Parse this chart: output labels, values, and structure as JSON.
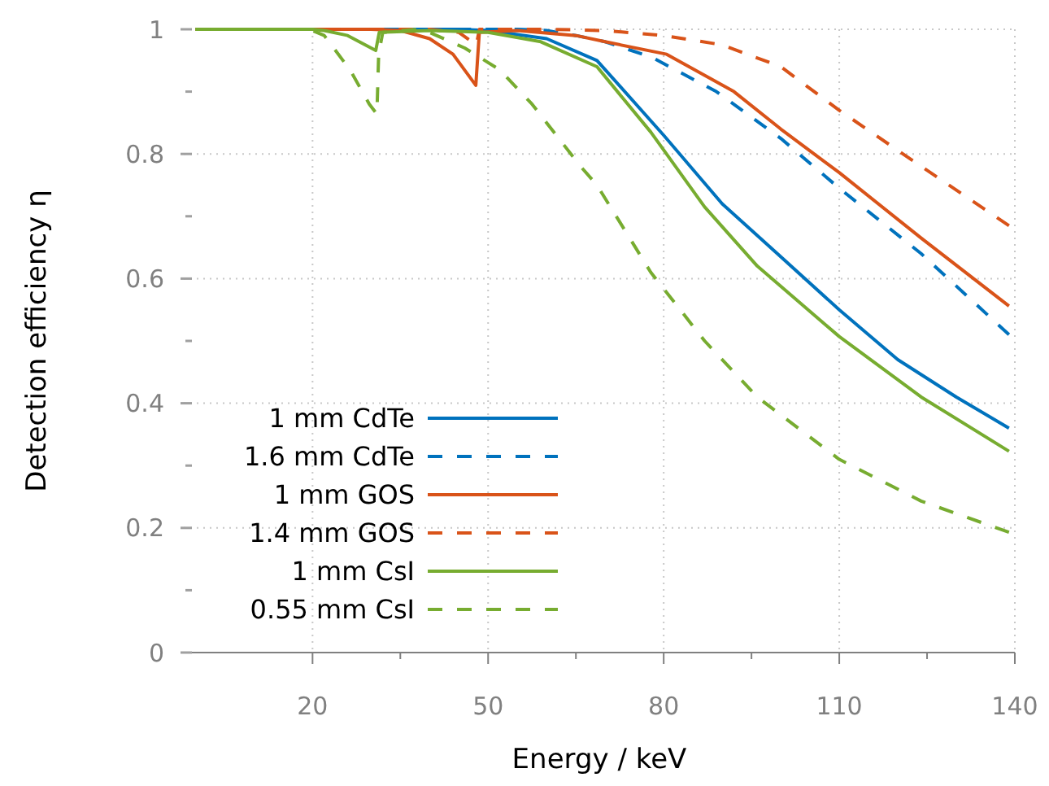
{
  "chart_data": {
    "type": "line",
    "xlabel": "Energy / keV",
    "ylabel": "Detection efficiency η",
    "xlim": [
      -2,
      140
    ],
    "xticks": [
      20,
      {
        "value": 35,
        "label": null
      },
      50,
      {
        "value": 65,
        "label": null
      },
      80,
      {
        "value": 95,
        "label": null
      },
      110,
      {
        "value": 125,
        "label": null
      },
      140
    ],
    "ylim": [
      0,
      1
    ],
    "yticks": [
      0,
      {
        "value": 0.1,
        "label": null
      },
      0.2,
      {
        "value": 0.3,
        "label": null
      },
      0.4,
      {
        "value": 0.5,
        "label": null
      },
      0.6,
      {
        "value": 0.7,
        "label": null
      },
      0.8,
      {
        "value": 0.9,
        "label": null
      },
      1
    ],
    "grid": true,
    "legend": "bottom left",
    "series": [
      {
        "name": "1 mm CdTe",
        "color": "#0072bd",
        "line_style": "solid",
        "x": [
          0,
          45,
          50,
          60,
          68.6,
          80,
          90,
          100,
          110,
          120,
          130,
          139
        ],
        "values": [
          1,
          1,
          0.998,
          0.985,
          0.95,
          0.83,
          0.72,
          0.635,
          0.55,
          0.47,
          0.41,
          0.36
        ]
      },
      {
        "name": "1.6 mm CdTe",
        "color": "#0072bd",
        "line_style": "dashed",
        "x": [
          0,
          55,
          60,
          65,
          70,
          78,
          89,
          100,
          110,
          124,
          139
        ],
        "values": [
          1,
          1,
          0.998,
          0.99,
          0.98,
          0.955,
          0.9,
          0.825,
          0.745,
          0.64,
          0.51
        ]
      },
      {
        "name": "1 mm GOS",
        "color": "#d95319",
        "line_style": "solid",
        "x": [
          0,
          30,
          35,
          40,
          44,
          47.9,
          48.5,
          55,
          65,
          70,
          80.5,
          92,
          100,
          110,
          124,
          139
        ],
        "values": [
          1,
          1,
          0.998,
          0.985,
          0.96,
          0.91,
          0.995,
          0.998,
          0.99,
          0.98,
          0.96,
          0.9,
          0.84,
          0.77,
          0.665,
          0.556
        ]
      },
      {
        "name": "1.4 mm GOS",
        "color": "#d95319",
        "line_style": "dashed",
        "x": [
          0,
          40,
          45,
          48,
          48.5,
          60,
          70,
          80,
          90,
          100,
          110,
          124,
          139
        ],
        "values": [
          1,
          1,
          0.995,
          0.975,
          1,
          1,
          0.998,
          0.99,
          0.975,
          0.94,
          0.87,
          0.78,
          0.685
        ]
      },
      {
        "name": "1 mm CsI",
        "color": "#77ac30",
        "line_style": "solid",
        "x": [
          0,
          20,
          22,
          26,
          30.8,
          31.4,
          40,
          50,
          59,
          68.6,
          77.8,
          87,
          96,
          110,
          124,
          139
        ],
        "values": [
          1,
          1,
          0.998,
          0.99,
          0.966,
          0.995,
          0.998,
          0.995,
          0.98,
          0.94,
          0.835,
          0.715,
          0.62,
          0.507,
          0.41,
          0.323
        ]
      },
      {
        "name": "0.55 mm CsI",
        "color": "#77ac30",
        "line_style": "dashed",
        "x": [
          0,
          19.5,
          22,
          26.4,
          29.7,
          31,
          31.3,
          32,
          38,
          40,
          46,
          52,
          57.5,
          65.8,
          68.6,
          77.8,
          87,
          96,
          110,
          124,
          139
        ],
        "values": [
          1,
          1,
          0.99,
          0.935,
          0.88,
          0.864,
          0.96,
          0.995,
          1,
          0.995,
          0.97,
          0.935,
          0.88,
          0.78,
          0.75,
          0.61,
          0.5,
          0.41,
          0.31,
          0.243,
          0.193
        ]
      }
    ]
  }
}
